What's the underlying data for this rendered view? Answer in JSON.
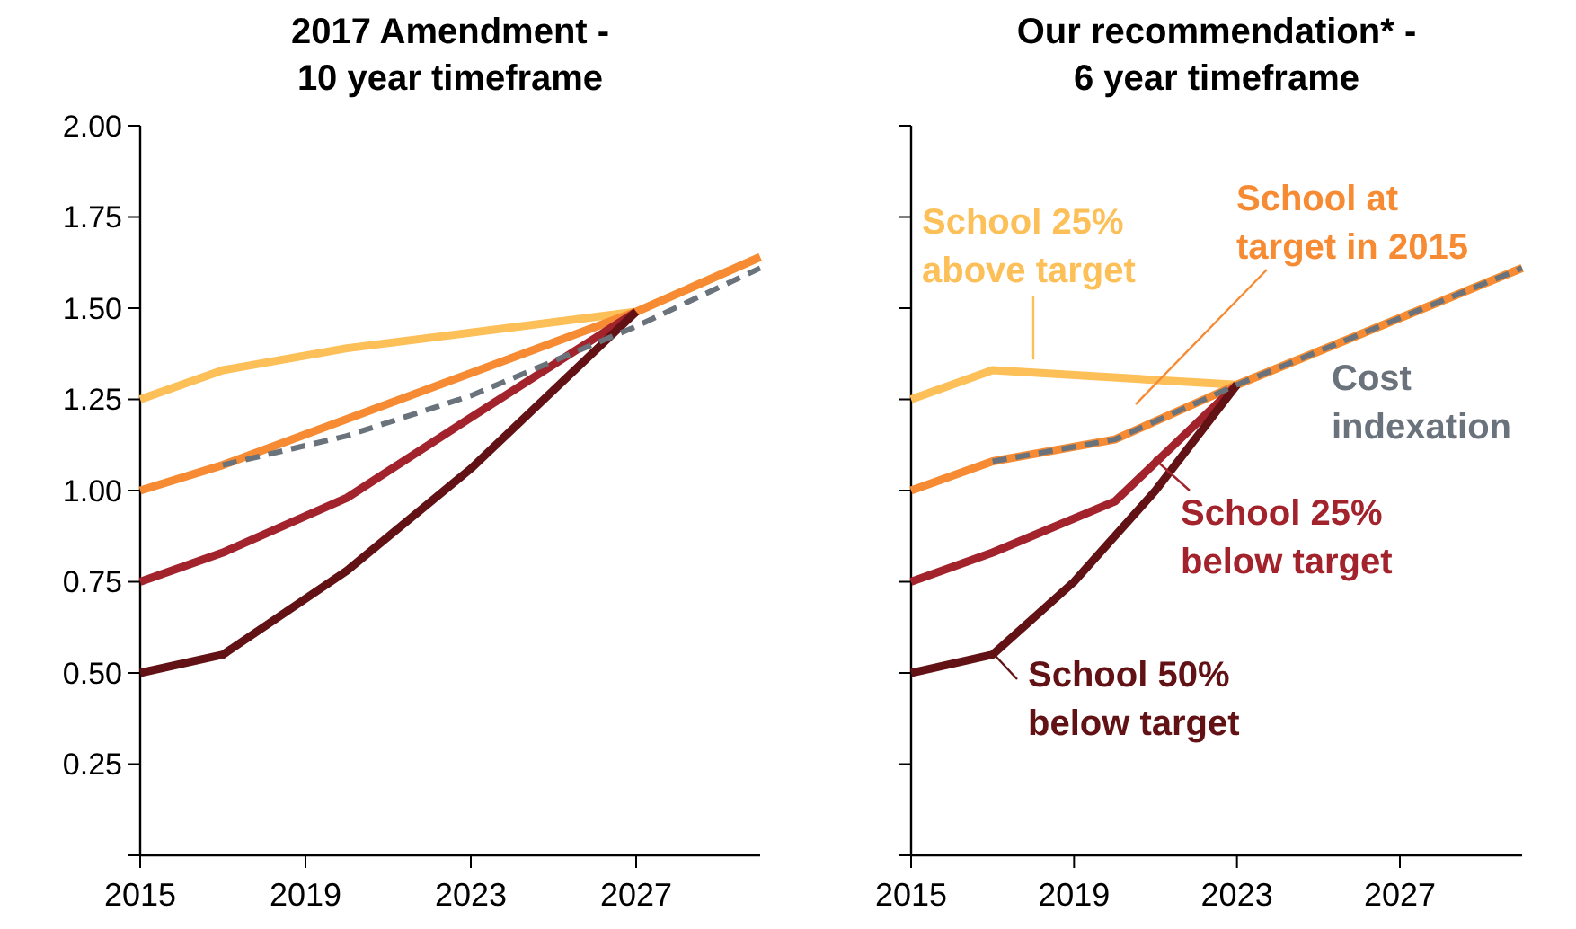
{
  "chart_data": [
    {
      "type": "line",
      "title": "2017 Amendment -\n10 year timeframe",
      "xlim": [
        2015,
        2030
      ],
      "xticks": [
        2015,
        2019,
        2023,
        2027
      ],
      "ylim": [
        0,
        2
      ],
      "yticks": [
        {
          "value": 0,
          "label": null
        },
        {
          "value": 0.25,
          "label": "0.25"
        },
        {
          "value": 0.5,
          "label": "0.50"
        },
        {
          "value": 0.75,
          "label": "0.75"
        },
        {
          "value": 1,
          "label": "1.00"
        },
        {
          "value": 1.25,
          "label": "1.25"
        },
        {
          "value": 1.5,
          "label": "1.50"
        },
        {
          "value": 1.75,
          "label": "1.75"
        },
        {
          "value": 2,
          "label": "2.00"
        }
      ],
      "grid": false,
      "marker": "none",
      "series": [
        {
          "color": "#fdbf57",
          "x": [
            2015,
            2017,
            2020,
            2027,
            2030
          ],
          "values": [
            1.25,
            1.33,
            1.39,
            1.49,
            1.64
          ]
        },
        {
          "color": "#f68b33",
          "x": [
            2015,
            2017,
            2027,
            2030
          ],
          "values": [
            1.0,
            1.07,
            1.49,
            1.64
          ]
        },
        {
          "color": "#a3232d",
          "x": [
            2015,
            2017,
            2020,
            2023,
            2027
          ],
          "values": [
            0.75,
            0.83,
            0.98,
            1.2,
            1.49
          ]
        },
        {
          "color": "#621214",
          "x": [
            2015,
            2017,
            2020,
            2023,
            2027
          ],
          "values": [
            0.5,
            0.55,
            0.78,
            1.06,
            1.49
          ]
        },
        {
          "color": "#6a737b",
          "line_style": "dashed",
          "x": [
            2017,
            2020,
            2023,
            2027,
            2030
          ],
          "values": [
            1.07,
            1.15,
            1.26,
            1.45,
            1.61
          ]
        }
      ]
    },
    {
      "type": "line",
      "title": "Our recommendation* -\n6 year timeframe",
      "xlim": [
        2015,
        2030
      ],
      "xticks": [
        2015,
        2019,
        2023,
        2027
      ],
      "ylim": [
        0,
        2
      ],
      "yticks": [
        0,
        0.25,
        0.5,
        0.75,
        1,
        1.25,
        1.5,
        1.75,
        2
      ],
      "tick_labels": "x",
      "grid": false,
      "marker": "none",
      "series": [
        {
          "name": "School 25%\nabove target",
          "color": "#fdbf57",
          "x": [
            2015,
            2017,
            2023,
            2030
          ],
          "values": [
            1.25,
            1.33,
            1.29,
            1.61
          ]
        },
        {
          "name": "School at\ntarget in 2015",
          "color": "#f68b33",
          "x": [
            2015,
            2017,
            2020,
            2023,
            2030
          ],
          "values": [
            1.0,
            1.08,
            1.14,
            1.29,
            1.61
          ]
        },
        {
          "name": "School 25%\nbelow target",
          "color": "#a3232d",
          "x": [
            2015,
            2017,
            2020,
            2023
          ],
          "values": [
            0.75,
            0.83,
            0.97,
            1.29
          ]
        },
        {
          "name": "School 50%\nbelow target",
          "color": "#621214",
          "x": [
            2015,
            2017,
            2019,
            2021,
            2023
          ],
          "values": [
            0.5,
            0.55,
            0.75,
            1.0,
            1.29
          ]
        },
        {
          "name": "Cost\nindexation",
          "color": "#6a737b",
          "line_style": "dashed",
          "x": [
            2017,
            2020,
            2023,
            2030
          ],
          "values": [
            1.08,
            1.14,
            1.29,
            1.61
          ]
        }
      ]
    }
  ]
}
